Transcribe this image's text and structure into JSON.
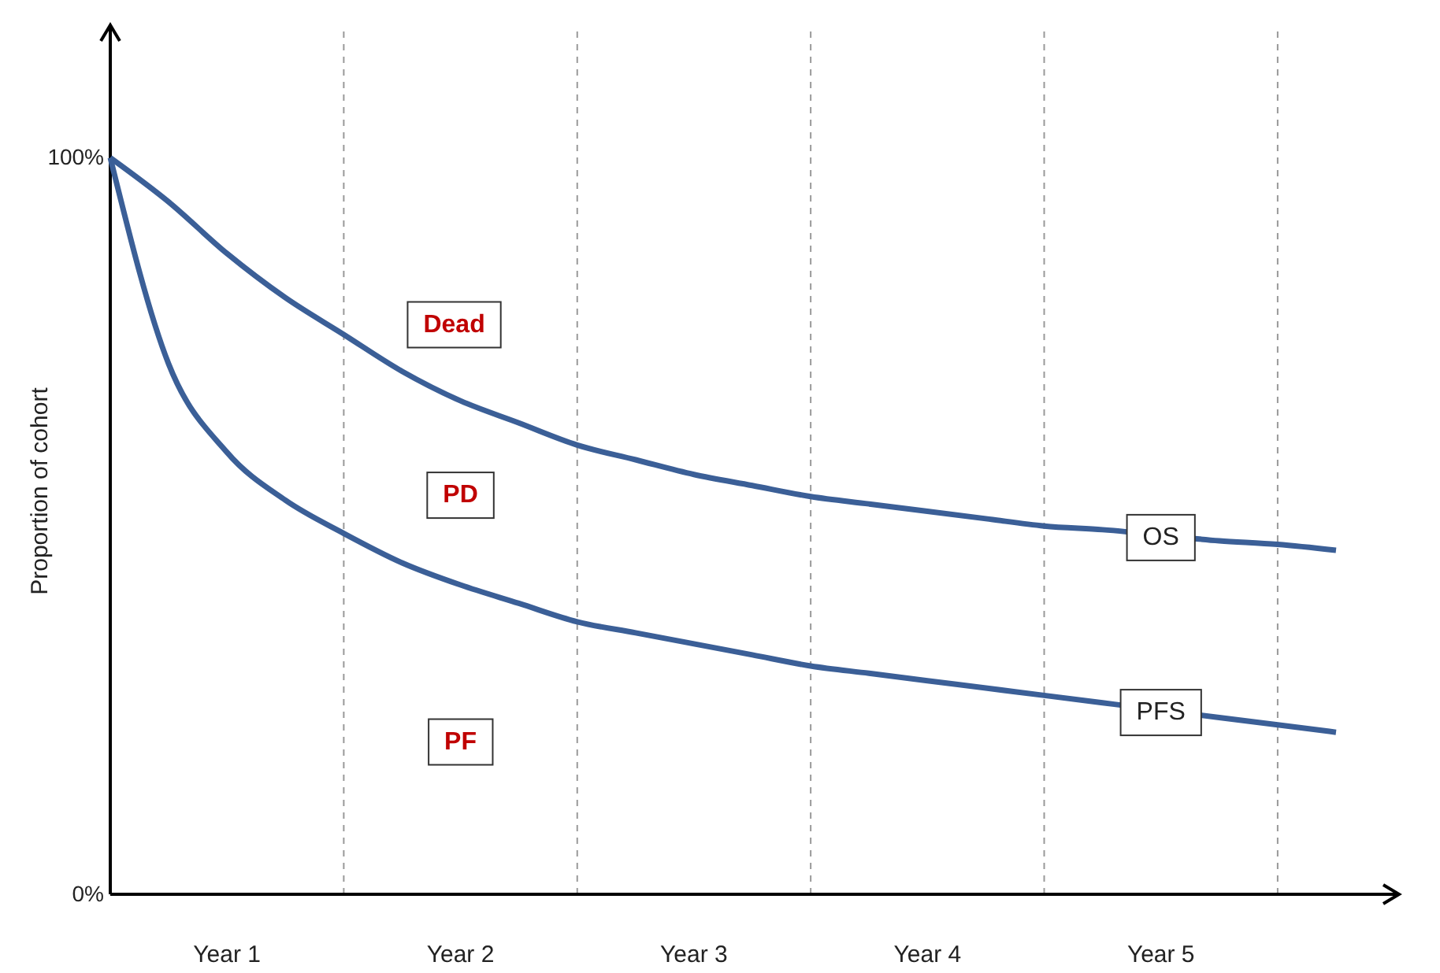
{
  "chart_data": {
    "type": "line",
    "ylabel": "Proportion of cohort",
    "categories": [
      null,
      null,
      "Year 1",
      null,
      null,
      null,
      "Year 2",
      null,
      null,
      null,
      "Year 3",
      null,
      null,
      null,
      "Year 4",
      null,
      null,
      null,
      "Year 5",
      null,
      null,
      null
    ],
    "ylim": [
      0,
      118
    ],
    "yticks": [
      {
        "value": 0,
        "label": "0%"
      },
      {
        "value": 100,
        "label": "100%"
      }
    ],
    "series": [
      {
        "name": "OS",
        "color": "#3b5f97",
        "values": [
          100,
          94,
          87,
          81,
          76,
          71,
          67,
          64,
          61,
          59,
          57,
          55.5,
          54,
          53,
          52,
          51,
          50,
          49.5,
          null,
          48,
          47.5,
          46.7
        ]
      },
      {
        "name": "PFS",
        "color": "#3b5f97",
        "values": [
          100,
          72,
          60,
          53.5,
          49,
          45,
          42,
          39.5,
          37,
          35.5,
          34,
          32.5,
          31,
          30,
          29,
          28,
          27,
          26,
          null,
          24,
          23,
          22
        ]
      }
    ],
    "annotations": [
      "Dead",
      "PD",
      "PF"
    ],
    "legend": false,
    "marker": "none",
    "line_style": "solid",
    "grid": "x"
  }
}
